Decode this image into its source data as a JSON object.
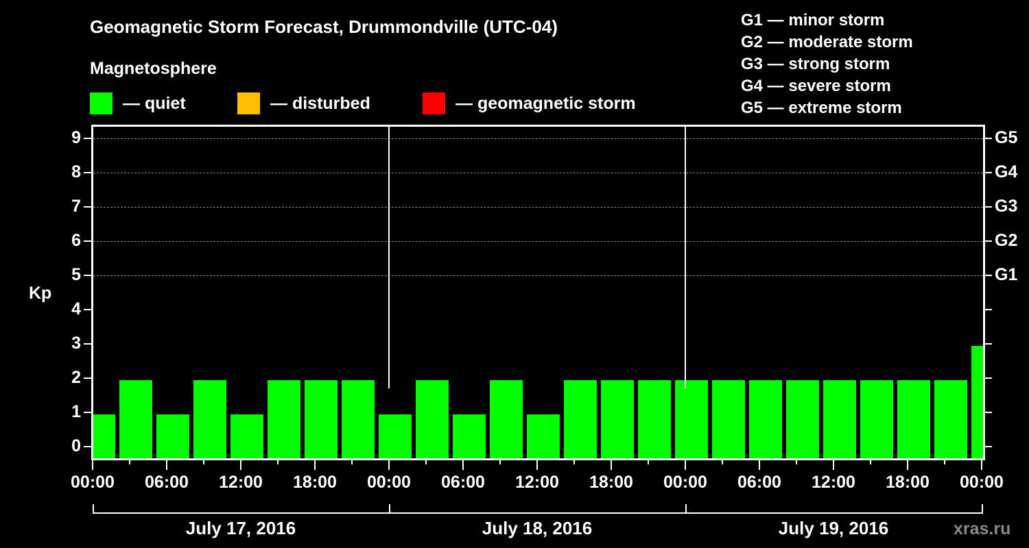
{
  "title": "Geomagnetic Storm Forecast, Drummondville (UTC-04)",
  "legend": {
    "heading": "Magnetosphere",
    "items": [
      {
        "label": "— quiet",
        "color": "#00ff00"
      },
      {
        "label": "— disturbed",
        "color": "#ffbf00"
      },
      {
        "label": "— geomagnetic storm",
        "color": "#ff0000"
      }
    ]
  },
  "g_scale": [
    "G1 — minor storm",
    "G2 — moderate storm",
    "G3 — strong storm",
    "G4 — severe storm",
    "G5 — extreme storm"
  ],
  "axis": {
    "y_label": "Kp",
    "y_ticks": [
      "0",
      "1",
      "2",
      "3",
      "4",
      "5",
      "6",
      "7",
      "8",
      "9"
    ],
    "right_ticks": [
      "G1",
      "G2",
      "G3",
      "G4",
      "G5"
    ],
    "x_ticks": [
      "00:00",
      "06:00",
      "12:00",
      "18:00",
      "00:00",
      "06:00",
      "12:00",
      "18:00",
      "00:00",
      "06:00",
      "12:00",
      "18:00",
      "00:00"
    ],
    "dates": [
      "July 17, 2016",
      "July 18, 2016",
      "July 19, 2016"
    ]
  },
  "watermark": "xras.ru",
  "chart_data": {
    "type": "bar",
    "title": "Geomagnetic Storm Forecast, Drummondville (UTC-04)",
    "xlabel": "",
    "ylabel": "Kp",
    "ylim": [
      0,
      9
    ],
    "grid": "dashed horizontal lines at Kp 5-9",
    "bar_interval_hours": 3,
    "categories": [
      "Jul 17 00-03",
      "Jul 17 03-06",
      "Jul 17 06-09",
      "Jul 17 09-12",
      "Jul 17 12-15",
      "Jul 17 15-18",
      "Jul 17 18-21",
      "Jul 17 21-24",
      "Jul 18 00-03",
      "Jul 18 03-06",
      "Jul 18 06-09",
      "Jul 18 09-12",
      "Jul 18 12-15",
      "Jul 18 15-18",
      "Jul 18 18-21",
      "Jul 18 21-24",
      "Jul 19 00-03",
      "Jul 19 03-06",
      "Jul 19 06-09",
      "Jul 19 09-12",
      "Jul 19 12-15",
      "Jul 19 15-18",
      "Jul 19 18-21",
      "Jul 19 21-24",
      "Jul 20 00-03"
    ],
    "values": [
      1,
      2,
      1,
      2,
      1,
      2,
      2,
      2,
      1,
      2,
      1,
      2,
      1,
      2,
      2,
      2,
      2,
      2,
      2,
      2,
      2,
      2,
      2,
      2,
      3
    ],
    "colors": {
      "quiet": "#00ff00",
      "disturbed": "#ffbf00",
      "storm": "#ff0000"
    },
    "legend": [
      "quiet",
      "disturbed",
      "geomagnetic storm"
    ],
    "right_axis": {
      "G1": 5,
      "G2": 6,
      "G3": 7,
      "G4": 8,
      "G5": 9
    }
  }
}
